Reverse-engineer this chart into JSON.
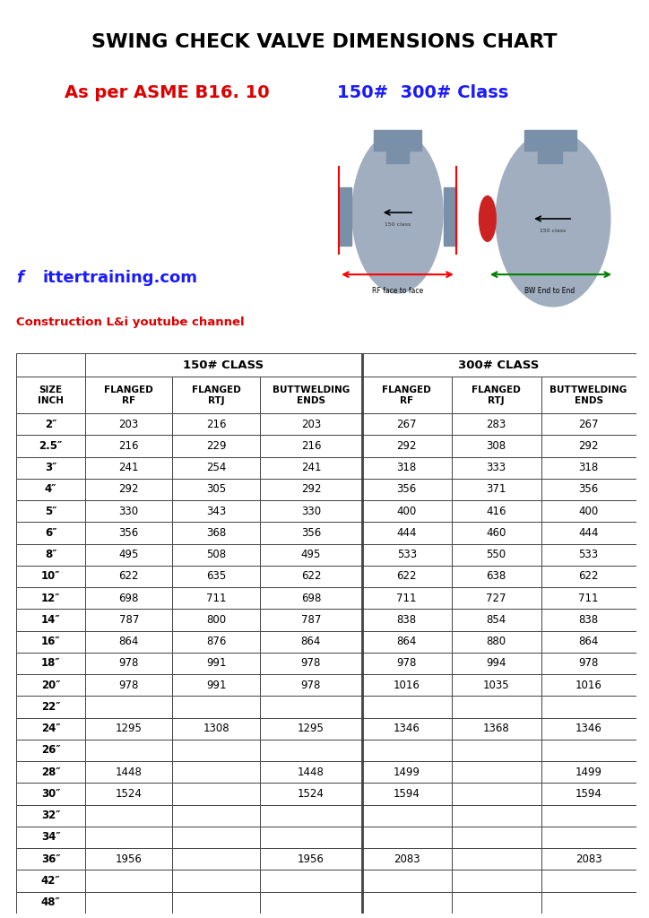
{
  "title": "SWING CHECK VALVE DIMENSIONS CHART",
  "subtitle_red": "As per ASME B16. 10",
  "subtitle_blue": "150#  300# Class",
  "website_f": "f",
  "website_rest": "ittertraining.com",
  "channel": "Construction L&i youtube channel",
  "bg_color": "#ffffff",
  "table_header_150": "150# CLASS",
  "table_header_300": "300# CLASS",
  "col_headers": [
    "SIZE\nINCH",
    "FLANGED\nRF",
    "FLANGED\nRTJ",
    "BUTTWELDING\nENDS",
    "FLANGED\nRF",
    "FLANGED\nRTJ",
    "BUTTWELDING\nENDS"
  ],
  "rows": [
    [
      "2″",
      "203",
      "216",
      "203",
      "267",
      "283",
      "267"
    ],
    [
      "2.5″",
      "216",
      "229",
      "216",
      "292",
      "308",
      "292"
    ],
    [
      "3″",
      "241",
      "254",
      "241",
      "318",
      "333",
      "318"
    ],
    [
      "4″",
      "292",
      "305",
      "292",
      "356",
      "371",
      "356"
    ],
    [
      "5″",
      "330",
      "343",
      "330",
      "400",
      "416",
      "400"
    ],
    [
      "6″",
      "356",
      "368",
      "356",
      "444",
      "460",
      "444"
    ],
    [
      "8″",
      "495",
      "508",
      "495",
      "533",
      "550",
      "533"
    ],
    [
      "10″",
      "622",
      "635",
      "622",
      "622",
      "638",
      "622"
    ],
    [
      "12″",
      "698",
      "711",
      "698",
      "711",
      "727",
      "711"
    ],
    [
      "14″",
      "787",
      "800",
      "787",
      "838",
      "854",
      "838"
    ],
    [
      "16″",
      "864",
      "876",
      "864",
      "864",
      "880",
      "864"
    ],
    [
      "18″",
      "978",
      "991",
      "978",
      "978",
      "994",
      "978"
    ],
    [
      "20″",
      "978",
      "991",
      "978",
      "1016",
      "1035",
      "1016"
    ],
    [
      "22″",
      "",
      "",
      "",
      "",
      "",
      ""
    ],
    [
      "24″",
      "1295",
      "1308",
      "1295",
      "1346",
      "1368",
      "1346"
    ],
    [
      "26″",
      "",
      "",
      "",
      "",
      "",
      ""
    ],
    [
      "28″",
      "1448",
      "",
      "1448",
      "1499",
      "",
      "1499"
    ],
    [
      "30″",
      "1524",
      "",
      "1524",
      "1594",
      "",
      "1594"
    ],
    [
      "32″",
      "",
      "",
      "",
      "",
      "",
      ""
    ],
    [
      "34″",
      "",
      "",
      "",
      "",
      "",
      ""
    ],
    [
      "36″",
      "1956",
      "",
      "1956",
      "2083",
      "",
      "2083"
    ],
    [
      "42″",
      "",
      "",
      "",
      "",
      "",
      ""
    ],
    [
      "48″",
      "",
      "",
      "",
      "",
      "",
      ""
    ]
  ],
  "rf_label": "RF face to face",
  "bw_label": "BW End to End",
  "valve_color": "#a0aec0",
  "flange_color": "#7a8fa8",
  "arrow_color_red": "#cc0000",
  "arrow_color_green": "#007700"
}
